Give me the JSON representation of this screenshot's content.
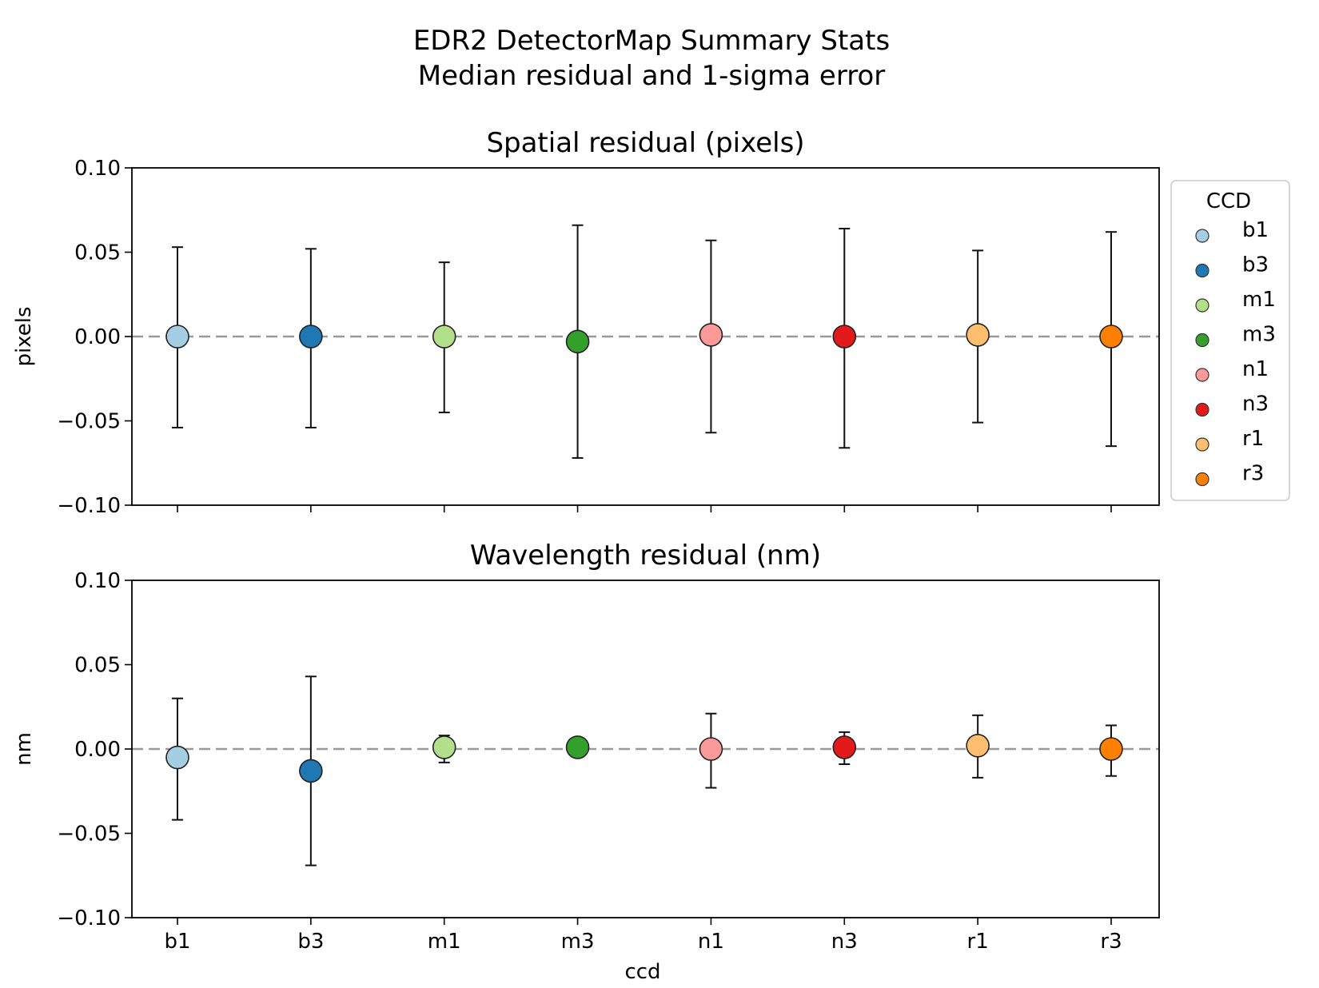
{
  "chart_data": {
    "type": "scatter",
    "suptitle": [
      "EDR2 DetectorMap Summary Stats",
      "Median residual and 1-sigma error"
    ],
    "categories": [
      "b1",
      "b3",
      "m1",
      "m3",
      "n1",
      "n3",
      "r1",
      "r3"
    ],
    "colors": [
      "#a6cee3",
      "#1f78b4",
      "#b2df8a",
      "#33a02c",
      "#fb9a99",
      "#e31a1c",
      "#fdbf6f",
      "#ff7f00"
    ],
    "xlabel": "ccd",
    "legend": {
      "title": "CCD",
      "placement": "outside right, top",
      "entries": [
        "b1",
        "b3",
        "m1",
        "m3",
        "n1",
        "n3",
        "r1",
        "r3"
      ]
    },
    "panels": [
      {
        "title": "Spatial residual (pixels)",
        "ylabel": "pixels",
        "ylim": [
          -0.1,
          0.1
        ],
        "yticks": [
          0.1,
          0.05,
          0.0,
          -0.05,
          -0.1
        ],
        "ytick_labels": [
          "0.10",
          "0.05",
          "0.00",
          "−0.05",
          "−0.10"
        ],
        "values": [
          0.0,
          0.0,
          0.0,
          -0.003,
          0.001,
          0.0,
          0.001,
          0.0
        ],
        "err_low": [
          -0.054,
          -0.054,
          -0.045,
          -0.072,
          -0.057,
          -0.066,
          -0.051,
          -0.065
        ],
        "err_high": [
          0.053,
          0.052,
          0.044,
          0.066,
          0.057,
          0.064,
          0.051,
          0.062
        ],
        "reference_line": 0.0,
        "show_xticklabels": false
      },
      {
        "title": "Wavelength residual (nm)",
        "ylabel": "nm",
        "ylim": [
          -0.1,
          0.1
        ],
        "yticks": [
          0.1,
          0.05,
          0.0,
          -0.05,
          -0.1
        ],
        "ytick_labels": [
          "0.10",
          "0.05",
          "0.00",
          "−0.05",
          "−0.10"
        ],
        "values": [
          -0.005,
          -0.013,
          0.001,
          0.001,
          0.0,
          0.001,
          0.002,
          0.0
        ],
        "err_low": [
          -0.042,
          -0.069,
          -0.008,
          0.001,
          -0.023,
          -0.009,
          -0.017,
          -0.016
        ],
        "err_high": [
          0.03,
          0.043,
          0.008,
          0.001,
          0.021,
          0.01,
          0.02,
          0.014
        ],
        "reference_line": 0.0,
        "show_xticklabels": true
      }
    ]
  }
}
